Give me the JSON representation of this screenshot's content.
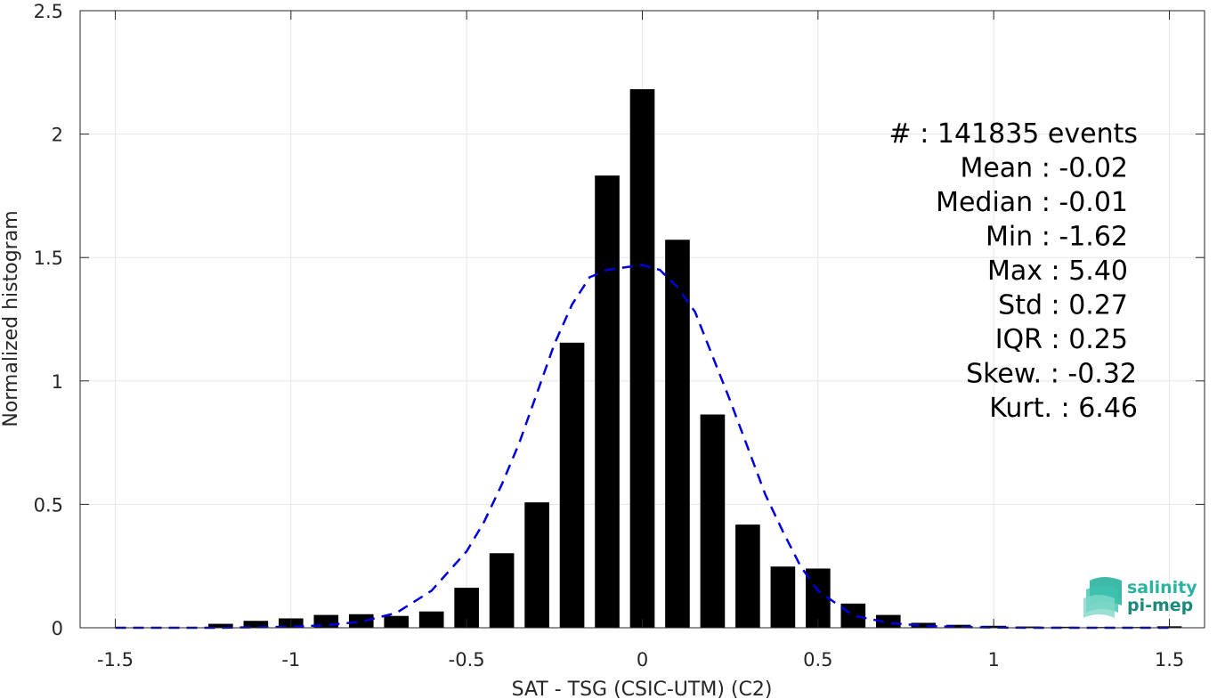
{
  "chart_data": {
    "type": "bar",
    "xlabel": "SAT - TSG (CSIC-UTM) (C2)",
    "ylabel": "Normalized histogram",
    "xlim": [
      -1.6,
      1.6
    ],
    "ylim": [
      0,
      2.5
    ],
    "xticks": [
      -1.5,
      -1,
      -0.5,
      0,
      0.5,
      1,
      1.5
    ],
    "xtick_labels": [
      "-1.5",
      "-1",
      "-0.5",
      "0",
      "0.5",
      "1",
      "1.5"
    ],
    "yticks": [
      0,
      0.5,
      1,
      1.5,
      2,
      2.5
    ],
    "ytick_labels": [
      "0",
      "0.5",
      "1",
      "1.5",
      "2",
      "2.5"
    ],
    "grid": true,
    "bar_width": 0.07,
    "bars": {
      "x": [
        -1.5,
        -1.4,
        -1.3,
        -1.2,
        -1.1,
        -1.0,
        -0.9,
        -0.8,
        -0.7,
        -0.6,
        -0.5,
        -0.4,
        -0.3,
        -0.2,
        -0.1,
        0.0,
        0.1,
        0.2,
        0.3,
        0.4,
        0.5,
        0.6,
        0.7,
        0.8,
        0.9,
        1.0,
        1.1,
        1.2,
        1.3,
        1.4,
        1.5
      ],
      "values": [
        0.0,
        0.0,
        0.0,
        0.016,
        0.028,
        0.038,
        0.052,
        0.055,
        0.048,
        0.066,
        0.162,
        0.302,
        0.508,
        1.155,
        1.832,
        2.182,
        1.572,
        0.864,
        0.418,
        0.248,
        0.24,
        0.098,
        0.052,
        0.02,
        0.012,
        0.008,
        0.005,
        0.004,
        0.003,
        0.003,
        0.006
      ],
      "color": "#000000"
    },
    "fit_curve": {
      "style": "dashed",
      "color": "#0000dd",
      "x": [
        -1.5,
        -1.4,
        -1.3,
        -1.2,
        -1.1,
        -1.0,
        -0.9,
        -0.8,
        -0.7,
        -0.6,
        -0.5,
        -0.45,
        -0.4,
        -0.35,
        -0.3,
        -0.25,
        -0.2,
        -0.15,
        -0.1,
        -0.05,
        0.0,
        0.05,
        0.1,
        0.15,
        0.2,
        0.25,
        0.3,
        0.35,
        0.4,
        0.45,
        0.5,
        0.6,
        0.7,
        0.8,
        0.9,
        1.0,
        1.1,
        1.2,
        1.3,
        1.4,
        1.5
      ],
      "y": [
        0.0,
        0.0,
        0.0,
        0.0,
        0.002,
        0.004,
        0.01,
        0.025,
        0.06,
        0.15,
        0.31,
        0.43,
        0.58,
        0.75,
        0.95,
        1.15,
        1.31,
        1.42,
        1.45,
        1.46,
        1.47,
        1.45,
        1.38,
        1.28,
        1.1,
        0.92,
        0.73,
        0.54,
        0.39,
        0.25,
        0.15,
        0.05,
        0.02,
        0.008,
        0.003,
        0.001,
        0.0,
        0.0,
        0.0,
        0.0,
        0.0
      ]
    },
    "stats": [
      {
        "label": "#  ",
        "value": "141835 events"
      },
      {
        "label": "Mean",
        "value": "-0.02"
      },
      {
        "label": "Median",
        "value": "-0.01"
      },
      {
        "label": "Min",
        "value": "-1.62"
      },
      {
        "label": "Max",
        "value": "5.40"
      },
      {
        "label": "Std",
        "value": "0.27"
      },
      {
        "label": "IQR",
        "value": "0.25"
      },
      {
        "label": "Skew.",
        "value": "-0.32"
      },
      {
        "label": "Kurt.",
        "value": "6.46"
      }
    ]
  },
  "logo": {
    "line1": "salinity",
    "line2": "pi-mep",
    "color1": "#2ab3a0",
    "color2": "#1a8a7c"
  }
}
